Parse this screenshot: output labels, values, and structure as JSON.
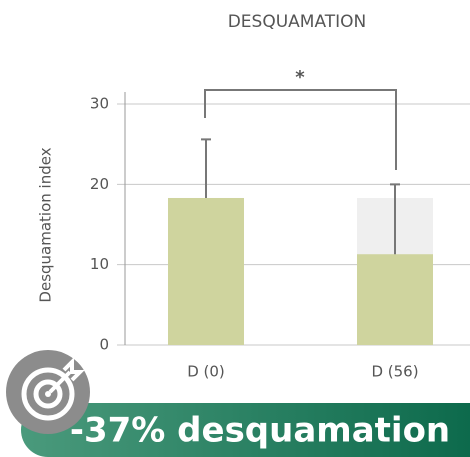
{
  "chart_data": {
    "type": "bar",
    "title": "DESQUAMATION",
    "y_label": "Desquamation index",
    "categories": [
      "D (0)",
      "D (56)"
    ],
    "series": [
      {
        "name": "Desquamation index",
        "color": "#cfd49e",
        "values": [
          18.3,
          11.3
        ],
        "errors": [
          7.3,
          8.7
        ]
      }
    ],
    "ghost_values": [
      null,
      18.3
    ],
    "ghost_color": "#efefef",
    "ylim": [
      0,
      30
    ],
    "yticks": [
      0,
      10,
      20,
      30
    ],
    "grid": true,
    "significance": "*",
    "banner": "-37% desquamation"
  }
}
